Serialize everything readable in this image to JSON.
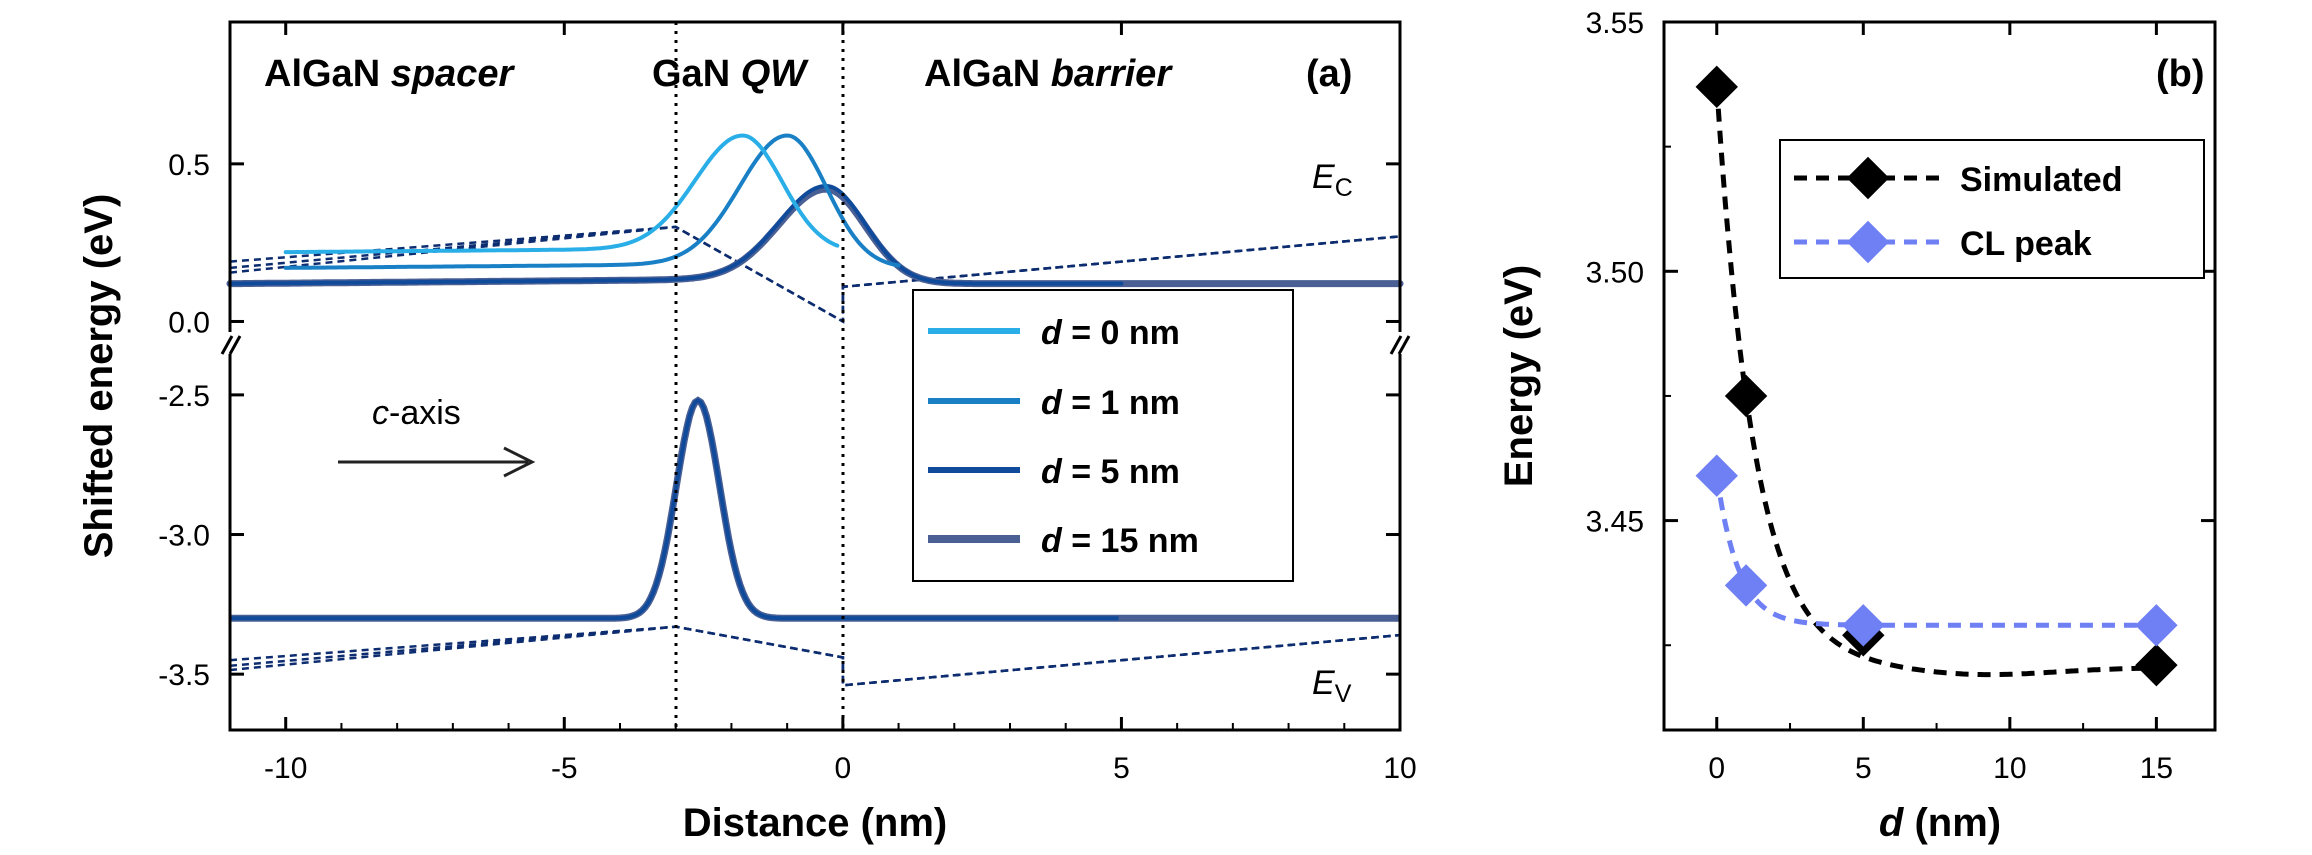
{
  "colors": {
    "d0": "#29aee7",
    "d1": "#1a80c6",
    "d5": "#0f4b9a",
    "d15": "#4a5f94",
    "dashed": "#0d2d70",
    "simulated": "#000000",
    "cl_peak": "#6f7ff4"
  },
  "chart_data": [
    {
      "panel": "(a)",
      "type": "line",
      "xlabel": "Distance (nm)",
      "ylabel": "Shifted energy (eV)",
      "xlim": [
        -11,
        10
      ],
      "ylim_upper": [
        -0.1,
        0.95
      ],
      "ylim_lower": [
        -3.7,
        -2.35
      ],
      "axis_break": "between 0.0 and -2.5",
      "x_ticks": [
        -10,
        -5,
        0,
        5,
        10
      ],
      "x_tick_labels": [
        "-10",
        "-5",
        "0",
        "5",
        "10"
      ],
      "y_ticks_upper": [
        0.0,
        0.5
      ],
      "y_tick_labels_upper": [
        "0.0",
        "0.5"
      ],
      "y_ticks_lower": [
        -3.5,
        -3.0,
        -2.5
      ],
      "y_tick_labels_lower": [
        "-3.5",
        "-3.0",
        "-2.5"
      ],
      "regions": [
        {
          "text": "AlGaN ",
          "italic": "spacer"
        },
        {
          "text": "GaN ",
          "italic": "QW"
        },
        {
          "text": "AlGaN ",
          "italic": "barrier"
        }
      ],
      "qw_boundaries": [
        -3,
        0
      ],
      "band_labels": {
        "ec_main": "E",
        "ec_sub": "C",
        "ev_main": "E",
        "ev_sub": "V"
      },
      "arrow_label": {
        "italic": "c",
        "text": "-axis"
      },
      "legend_position": "center-right",
      "electron_wavefunctions": [
        {
          "name": "d = 0 nm",
          "d": 0,
          "baseline": 0.22,
          "peak_x": -1.8,
          "peak_value": 0.59,
          "x_range": [
            -10,
            -0.1
          ]
        },
        {
          "name": "d = 1 nm",
          "d": 1,
          "baseline": 0.17,
          "peak_x": -1.0,
          "peak_value": 0.59,
          "x_range": [
            -10,
            1.0
          ]
        },
        {
          "name": "d = 5 nm",
          "d": 5,
          "baseline": 0.12,
          "peak_x": -0.3,
          "peak_value": 0.43,
          "x_range": [
            -11,
            5.0
          ]
        },
        {
          "name": "d = 15 nm",
          "d": 15,
          "baseline": 0.12,
          "peak_x": -0.3,
          "peak_value": 0.42,
          "x_range": [
            -11,
            10
          ]
        }
      ],
      "hole_wavefunction": {
        "baseline": -3.3,
        "peak_x": -2.6,
        "peak_value": -2.52,
        "x_range": [
          -11,
          10
        ]
      },
      "conduction_band_profile": [
        [
          -11,
          0.17
        ],
        [
          -3,
          0.3
        ],
        [
          0,
          0.0
        ],
        [
          0,
          0.11
        ],
        [
          10,
          0.27
        ]
      ],
      "valence_band_profile": [
        [
          -11,
          -3.47
        ],
        [
          -3,
          -3.33
        ],
        [
          0,
          -3.44
        ],
        [
          0,
          -3.54
        ],
        [
          10,
          -3.36
        ]
      ]
    },
    {
      "panel": "(b)",
      "type": "scatter",
      "xlabel_italic": "d",
      "xlabel": " (nm)",
      "ylabel": "Energy (eV)",
      "xlim": [
        -1.8,
        17
      ],
      "ylim": [
        3.408,
        3.55
      ],
      "x_ticks": [
        0,
        5,
        10,
        15
      ],
      "x_tick_labels": [
        "0",
        "5",
        "10",
        "15"
      ],
      "y_ticks": [
        3.45,
        3.5,
        3.55
      ],
      "y_tick_labels": [
        "3.45",
        "3.50",
        "3.55"
      ],
      "legend_position": "top-right",
      "series": [
        {
          "name": "Simulated",
          "x": [
            0,
            1,
            5,
            15
          ],
          "y": [
            3.537,
            3.475,
            3.427,
            3.421
          ]
        },
        {
          "name": "CL peak",
          "x": [
            0,
            1,
            5,
            15
          ],
          "y": [
            3.459,
            3.437,
            3.429,
            3.429
          ]
        }
      ]
    }
  ]
}
